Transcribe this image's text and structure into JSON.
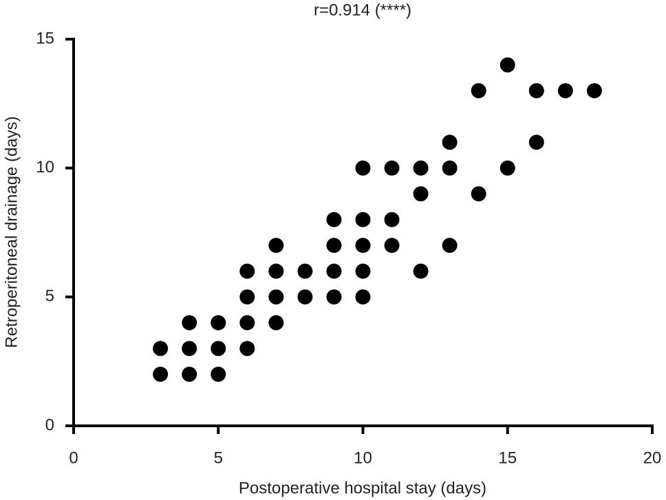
{
  "chart_data": {
    "type": "scatter",
    "title": "r=0.914 (****)",
    "xlabel": "Postoperative hospital stay (days)",
    "ylabel": "Retroperitoneal drainage (days)",
    "x": [
      3,
      3,
      4,
      4,
      4,
      5,
      5,
      5,
      6,
      6,
      6,
      6,
      7,
      7,
      7,
      7,
      8,
      8,
      9,
      9,
      9,
      9,
      10,
      10,
      10,
      10,
      10,
      11,
      11,
      11,
      12,
      12,
      12,
      13,
      13,
      13,
      14,
      14,
      15,
      15,
      16,
      16,
      17,
      18
    ],
    "y": [
      3,
      2,
      4,
      3,
      2,
      4,
      3,
      2,
      6,
      5,
      4,
      3,
      7,
      6,
      5,
      4,
      6,
      5,
      8,
      7,
      6,
      5,
      10,
      8,
      7,
      6,
      5,
      10,
      8,
      7,
      10,
      9,
      6,
      11,
      10,
      7,
      13,
      9,
      14,
      10,
      13,
      11,
      13,
      13
    ],
    "color": "#000000",
    "xlim": [
      0,
      20
    ],
    "xticks": [
      0,
      5,
      10,
      15,
      20
    ],
    "ylim": [
      0,
      15
    ],
    "yticks": [
      0,
      5,
      10,
      15
    ]
  }
}
